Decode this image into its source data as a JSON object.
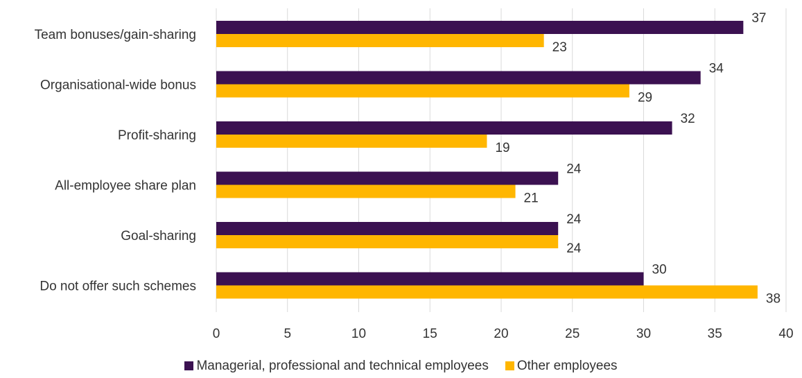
{
  "chart_data": {
    "type": "bar",
    "orientation": "horizontal",
    "title": "",
    "xlabel": "",
    "ylabel": "",
    "categories": [
      "Team bonuses/gain-sharing",
      "Organisational-wide bonus",
      "Profit-sharing",
      "All-employee share plan",
      "Goal-sharing",
      "Do not offer such schemes"
    ],
    "series": [
      {
        "name": "Managerial, professional and technical employees",
        "color": "#3b1151",
        "values": [
          37,
          34,
          32,
          24,
          24,
          30
        ]
      },
      {
        "name": "Other employees",
        "color": "#ffb600",
        "values": [
          23,
          29,
          19,
          21,
          24,
          38
        ]
      }
    ],
    "xlim": [
      0,
      40
    ],
    "xticks": [
      "0",
      "5",
      "10",
      "15",
      "20",
      "25",
      "30",
      "35",
      "40"
    ],
    "grid": "vertical",
    "legend_position": "bottom"
  }
}
